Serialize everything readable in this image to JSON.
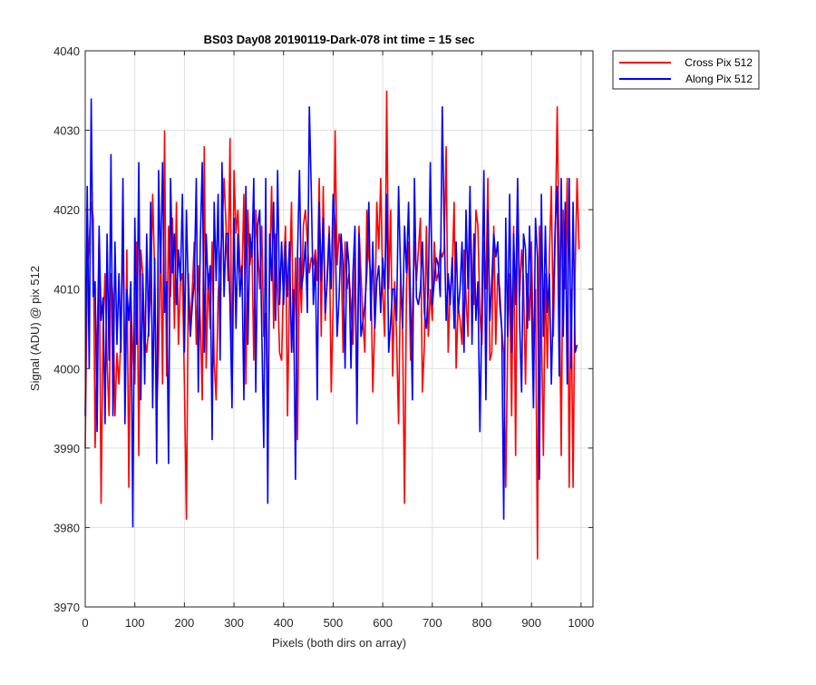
{
  "chart_data": {
    "type": "line",
    "title": "BS03 Day08 20190119-Dark-078 int time = 15 sec",
    "xlabel": "Pixels (both dirs on array)",
    "ylabel": "Signal (ADU) @ pix 512",
    "xlim": [
      0,
      1024
    ],
    "ylim": [
      3970,
      4040
    ],
    "xticks": [
      0,
      100,
      200,
      300,
      400,
      500,
      600,
      700,
      800,
      900,
      1000
    ],
    "yticks": [
      3970,
      3980,
      3990,
      4000,
      4010,
      4020,
      4030,
      4040
    ],
    "grid": true,
    "legend_position": "outside-top-right",
    "x_start": 0,
    "x_step": 4,
    "series": [
      {
        "name": "Cross Pix 512",
        "color": "#ff0000",
        "values": [
          3990,
          4012,
          4016,
          4021,
          4019,
          3990,
          4003,
          4017,
          3983,
          4005,
          4012,
          4001,
          3994,
          4012,
          4009,
          3994,
          4002,
          3998,
          4004,
          4018,
          3997,
          4015,
          3985,
          4009,
          4002,
          3998,
          4016,
          3989,
          4015,
          4012,
          4004,
          4002,
          4005,
          4010,
          4022,
          4012,
          3994,
          4002,
          4017,
          3998,
          4030,
          3999,
          4018,
          4009,
          4019,
          4005,
          4021,
          4003,
          4011,
          4012,
          3998,
          3981,
          4012,
          4005,
          4010,
          4016,
          4003,
          4013,
          4006,
          3996,
          4028,
          4000,
          4012,
          4005,
          4016,
          4001,
          3996,
          4009,
          4014,
          4017,
          4024,
          4018,
          4011,
          4029,
          3997,
          4025,
          4017,
          4020,
          4013,
          4011,
          4022,
          3998,
          4020,
          4013,
          4016,
          4001,
          4020,
          4015,
          4010,
          4018,
          4004,
          4007,
          3993,
          4012,
          4023,
          4005,
          4017,
          4010,
          4002,
          4001,
          4012,
          4018,
          3994,
          4010,
          4021,
          4002,
          4014,
          3991,
          4014,
          4007,
          4018,
          4020,
          4016,
          4012,
          4014,
          4013,
          4015,
          4011,
          4024,
          4004,
          4023,
          4006,
          4012,
          4018,
          3997,
          4008,
          4030,
          4013,
          4017,
          4015,
          4002,
          4016,
          4010,
          4012,
          4008,
          4003,
          4014,
          3995,
          4018,
          4012,
          4006,
          4002,
          4020,
          4014,
          4012,
          3997,
          4006,
          4021,
          4015,
          4024,
          4010,
          4004,
          4035,
          4010,
          4020,
          3999,
          4011,
          4004,
          3993,
          4012,
          4005,
          3983,
          4011,
          4016,
          4001,
          4007,
          4016,
          4011,
          4015,
          4019,
          3997,
          4003,
          4018,
          4004,
          4010,
          4006,
          4016,
          4011,
          4012,
          4015,
          4014,
          4015,
          4028,
          4002,
          4010,
          4012,
          4021,
          4000,
          4008,
          4006,
          4003,
          4015,
          4009,
          4004,
          4021,
          4012,
          4008,
          4020,
          4018,
          4007,
          4003,
          4016,
          4010,
          4024,
          4001,
          4002,
          4018,
          4003,
          4012,
          4010,
          4005,
          4002,
          3985,
          4003,
          4012,
          3994,
          4018,
          3989,
          4023,
          4009,
          4015,
          4011,
          3998,
          4012,
          4006,
          4016,
          4001,
          4010,
          3976,
          4018,
          4006,
          3989,
          4012,
          4000,
          4014,
          4023,
          4004,
          4017,
          4033,
          4012,
          3989,
          4020,
          4010,
          4024,
          3985,
          4010,
          3985,
          4012,
          4024,
          4015
        ]
      },
      {
        "name": "Along Pix 512",
        "color": "#0000ff",
        "values": [
          3994,
          4023,
          4000,
          4034,
          4009,
          4011,
          3992,
          4018,
          4006,
          4009,
          3993,
          4017,
          4001,
          4027,
          3994,
          4016,
          4003,
          4012,
          4002,
          4024,
          3993,
          4010,
          4006,
          4011,
          3980,
          4019,
          4003,
          4026,
          3996,
          4012,
          3998,
          4017,
          4004,
          4021,
          3995,
          4014,
          3988,
          4025,
          4012,
          4026,
          4007,
          4011,
          3988,
          4024,
          4012,
          4017,
          4008,
          4015,
          4011,
          4022,
          4002,
          4020,
          4009,
          4004,
          4008,
          4011,
          4024,
          3997,
          4016,
          4026,
          4002,
          4017,
          4010,
          4013,
          3991,
          4021,
          4011,
          4022,
          4001,
          4026,
          4009,
          4017,
          4017,
          4008,
          3995,
          4019,
          4005,
          4017,
          4009,
          4013,
          3996,
          4023,
          4003,
          4017,
          4014,
          4024,
          3997,
          4018,
          4020,
          4005,
          3990,
          4024,
          3983,
          4017,
          4011,
          4021,
          4006,
          4025,
          4008,
          4016,
          4008,
          4016,
          4009,
          4016,
          4002,
          4010,
          3986,
          4014,
          4025,
          4010,
          4012,
          4016,
          4007,
          4033,
          4022,
          4008,
          4014,
          3996,
          4021,
          4011,
          4019,
          4007,
          4011,
          4017,
          4010,
          4022,
          4018,
          4004,
          4009,
          4017,
          4013,
          4000,
          4016,
          4013,
          4000,
          4012,
          4018,
          3993,
          4017,
          4004,
          4006,
          4008,
          4012,
          4021,
          4006,
          4016,
          4005,
          4011,
          4013,
          4007,
          4014,
          4010,
          4022,
          4002,
          4006,
          4010,
          4010,
          4006,
          4023,
          4012,
          4005,
          4018,
          4012,
          4021,
          4008,
          3996,
          4024,
          4009,
          4008,
          4010,
          4016,
          4007,
          4005,
          4010,
          4026,
          4008,
          4011,
          4014,
          4013,
          4009,
          4033,
          4018,
          4006,
          4012,
          4008,
          4014,
          4005,
          4016,
          4007,
          4010,
          4016,
          4002,
          4020,
          4010,
          4023,
          4003,
          4017,
          4006,
          4011,
          3992,
          4008,
          4025,
          3996,
          4020,
          4006,
          4011,
          4017,
          4014,
          4016,
          4008,
          4005,
          3981,
          4019,
          4004,
          4022,
          4002,
          4017,
          4008,
          4024,
          4006,
          3997,
          4017,
          4015,
          4005,
          4018,
          4009,
          3995,
          4019,
          4014,
          3986,
          4022,
          4004,
          4018,
          4007,
          4012,
          3998,
          4009,
          4018,
          4023,
          3999,
          4024,
          4004,
          4021,
          3998,
          4024,
          4000,
          4021,
          4002,
          4003
        ]
      }
    ]
  }
}
